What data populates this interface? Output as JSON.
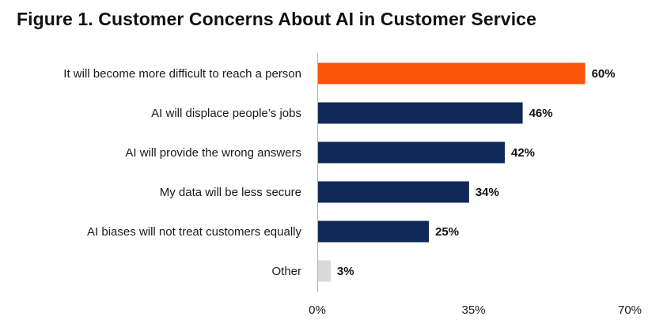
{
  "title": "Figure 1. Customer Concerns About AI in Customer Service",
  "colors": {
    "highlight": "#fc5409",
    "primary": "#0e2858",
    "other": "#d9d9d9",
    "axis": "#b3b3b3"
  },
  "chart_data": {
    "type": "bar",
    "orientation": "horizontal",
    "title": "Figure 1. Customer Concerns About AI in Customer Service",
    "categories": [
      "It will become more difficult to reach a person",
      "AI will displace people’s jobs",
      "AI will provide the wrong answers",
      "My data will be less secure",
      "AI biases will not treat customers equally",
      "Other"
    ],
    "values": [
      60,
      46,
      42,
      34,
      25,
      3
    ],
    "value_labels": [
      "60%",
      "46%",
      "42%",
      "34%",
      "25%",
      "3%"
    ],
    "bar_colors": [
      "highlight",
      "primary",
      "primary",
      "primary",
      "primary",
      "other"
    ],
    "xlim": [
      0,
      70
    ],
    "x_ticks": [
      0,
      35,
      70
    ],
    "x_tick_labels": [
      "0%",
      "35%",
      "70%"
    ],
    "xlabel": "",
    "ylabel": "",
    "grid": false,
    "legend": "none"
  }
}
